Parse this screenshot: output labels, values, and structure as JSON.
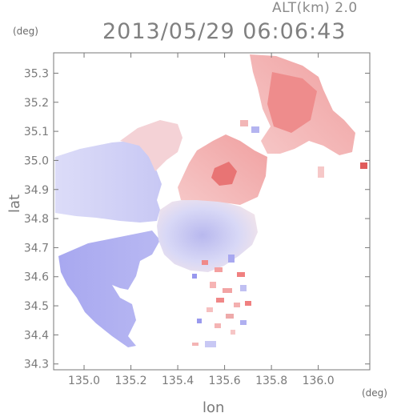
{
  "header": {
    "altitude_label": "ALT(km) 2.0",
    "timestamp": "2013/05/29 06:06:43"
  },
  "chart_data": {
    "type": "heatmap",
    "title": "2013/05/29 06:06:43",
    "xlabel": "lon",
    "ylabel": "lat",
    "x_unit": "(deg)",
    "y_unit": "(deg)",
    "xlim": [
      134.87,
      136.22
    ],
    "ylim": [
      34.28,
      35.37
    ],
    "x_ticks": [
      "135.0",
      "135.2",
      "135.4",
      "135.6",
      "135.8",
      "136.0"
    ],
    "y_ticks": [
      "34.3",
      "34.4",
      "34.5",
      "34.6",
      "34.7",
      "34.8",
      "34.9",
      "35.0",
      "35.1",
      "35.2",
      "35.3"
    ],
    "grid": false,
    "colors": {
      "approaching": "#8a8af0",
      "receding": "#f07a7a",
      "frame": "#777777"
    }
  }
}
